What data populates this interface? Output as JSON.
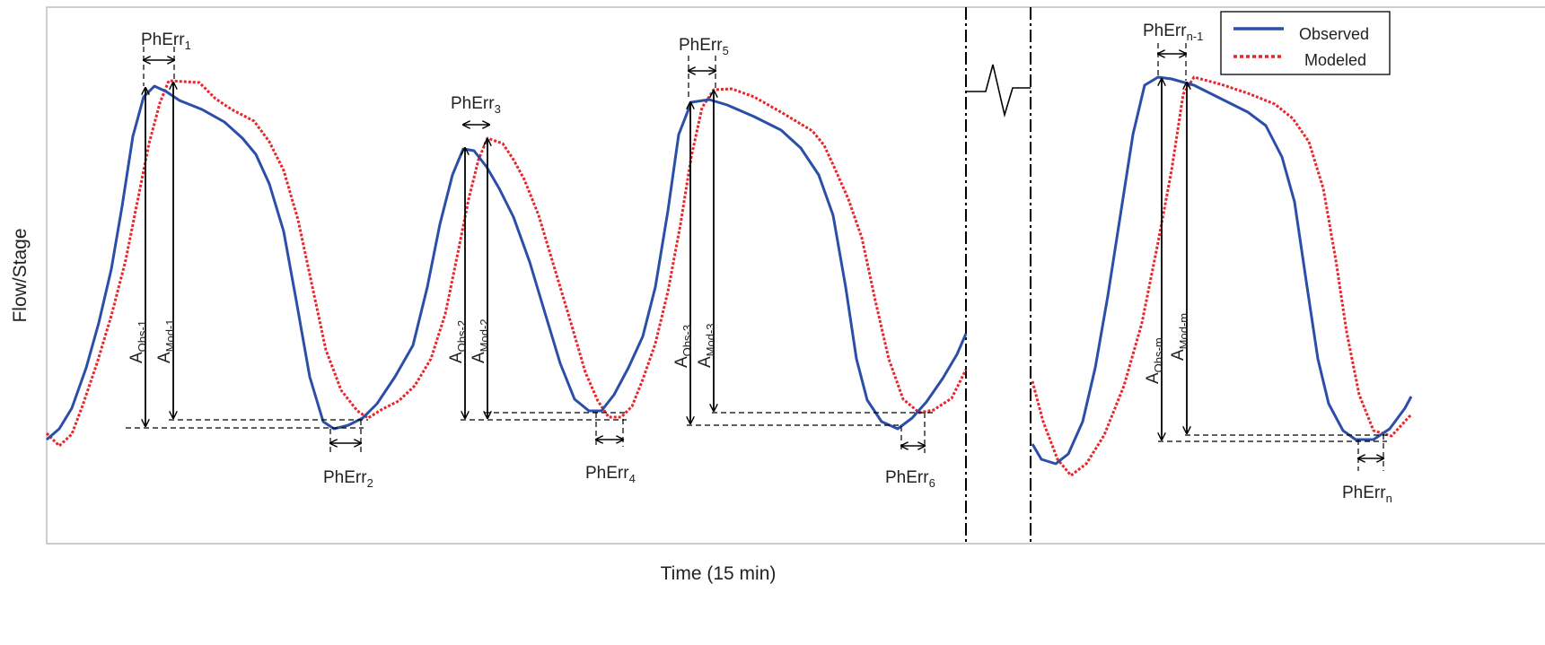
{
  "figure": {
    "y_axis_label": "Flow/Stage",
    "x_axis_label": "Time (15 min)"
  },
  "legend": {
    "observed": "Observed",
    "modeled": "Modeled"
  },
  "colors": {
    "observed": "#2b4fa8",
    "modeled": "#e8262b",
    "annotation": "#000000",
    "frame": "#bdbdbd"
  },
  "phase_error_labels": [
    {
      "base": "PhErr",
      "sub": "1"
    },
    {
      "base": "PhErr",
      "sub": "2"
    },
    {
      "base": "PhErr",
      "sub": "3"
    },
    {
      "base": "PhErr",
      "sub": "4"
    },
    {
      "base": "PhErr",
      "sub": "5"
    },
    {
      "base": "PhErr",
      "sub": "6"
    },
    {
      "base": "PhErr",
      "sub": "n-1"
    },
    {
      "base": "PhErr",
      "sub": "n"
    }
  ],
  "amplitude_labels": [
    {
      "base": "A",
      "sub": "Obs-1"
    },
    {
      "base": "A",
      "sub": "Mod-1"
    },
    {
      "base": "A",
      "sub": "Obs-2"
    },
    {
      "base": "A",
      "sub": "Mod-2"
    },
    {
      "base": "A",
      "sub": "Obs-3"
    },
    {
      "base": "A",
      "sub": "Mod-3"
    },
    {
      "base": "A",
      "sub": "Obs-m"
    },
    {
      "base": "A",
      "sub": "Mod-m"
    }
  ]
}
